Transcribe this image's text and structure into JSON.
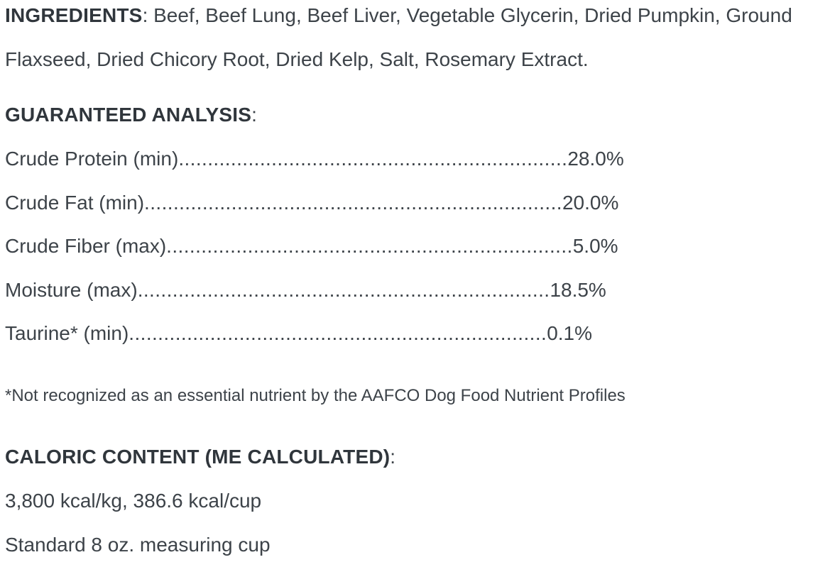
{
  "ingredients": {
    "heading": "INGREDIENTS",
    "colon": ":",
    "list": " Beef, Beef Lung, Beef Liver, Vegetable Glycerin, Dried Pumpkin, Ground Flaxseed, Dried Chicory Root, Dried Kelp, Salt, Rosemary Extract."
  },
  "guaranteed_analysis": {
    "heading": "GUARANTEED ANALYSIS",
    "colon": ":",
    "rows": [
      {
        "label": "Crude Protein (min)",
        "dots": "...................................................................",
        "value": "28.0%"
      },
      {
        "label": "Crude Fat (min)",
        "dots": "........................................................................",
        "value": "20.0%"
      },
      {
        "label": "Crude Fiber (max)",
        "dots": "......................................................................",
        "value": "5.0%"
      },
      {
        "label": "Moisture (max)",
        "dots": ".......................................................................",
        "value": "18.5%"
      },
      {
        "label": "Taurine* (min)",
        "dots": "........................................................................",
        "value": "0.1%"
      }
    ],
    "footnote": "*Not recognized as an essential nutrient by the AAFCO Dog Food Nutrient Profiles"
  },
  "caloric_content": {
    "heading": "CALORIC CONTENT (ME CALCULATED)",
    "colon": ":",
    "energy": "3,800 kcal/kg, 386.6 kcal/cup",
    "cup_note": "Standard 8 oz. measuring cup"
  },
  "colors": {
    "background": "#ffffff",
    "body_text": "#3d4349",
    "heading_text": "#30363c"
  }
}
